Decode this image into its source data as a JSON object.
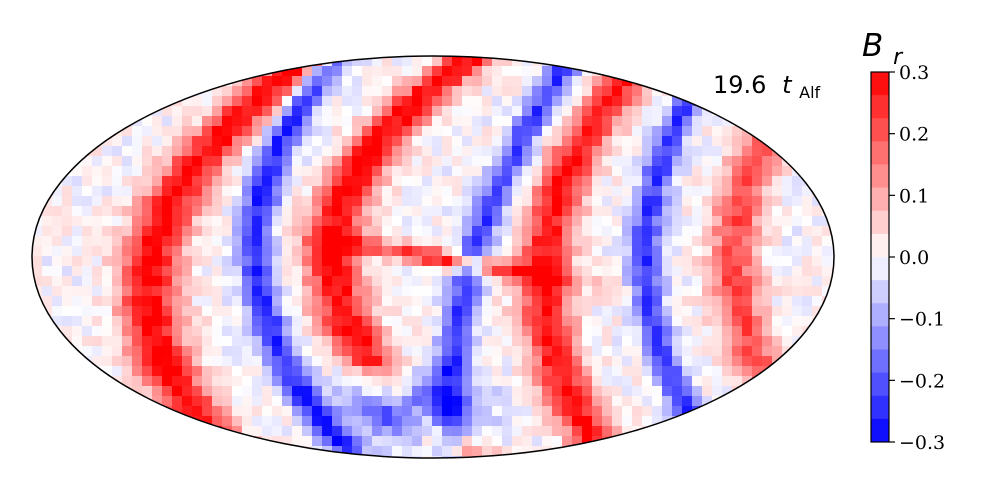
{
  "chart_data": {
    "type": "heatmap",
    "projection": "mollweide",
    "annotation": {
      "time_value": "19.6",
      "time_symbol": "t",
      "time_subscript": "Alf"
    },
    "colorbar": {
      "label_symbol": "B",
      "label_subscript": "r",
      "colormap": "bwr",
      "vmin": -0.3,
      "vmax": 0.3,
      "ticks": [
        0.3,
        0.2,
        0.1,
        0.0,
        -0.1,
        -0.2,
        -0.3
      ],
      "tick_labels": [
        "0.3",
        "0.2",
        "0.1",
        "0.0",
        "−0.1",
        "−0.2",
        "−0.3"
      ],
      "colors": {
        "low": "#0000ff",
        "mid": "#ffffff",
        "high": "#ff0000"
      }
    },
    "field_bands": [
      {
        "sign": "positive",
        "amplitude": 0.3,
        "description": "outer left arc"
      },
      {
        "sign": "negative",
        "amplitude": 0.25,
        "description": "left arc"
      },
      {
        "sign": "positive",
        "amplitude": 0.3,
        "description": "inner loop"
      },
      {
        "sign": "negative",
        "amplitude": 0.25,
        "description": "central vertical"
      },
      {
        "sign": "positive",
        "amplitude": 0.3,
        "description": "right arc"
      },
      {
        "sign": "negative",
        "amplitude": 0.25,
        "description": "right vertical"
      },
      {
        "sign": "positive",
        "amplitude": 0.2,
        "description": "outer right arc"
      }
    ]
  }
}
